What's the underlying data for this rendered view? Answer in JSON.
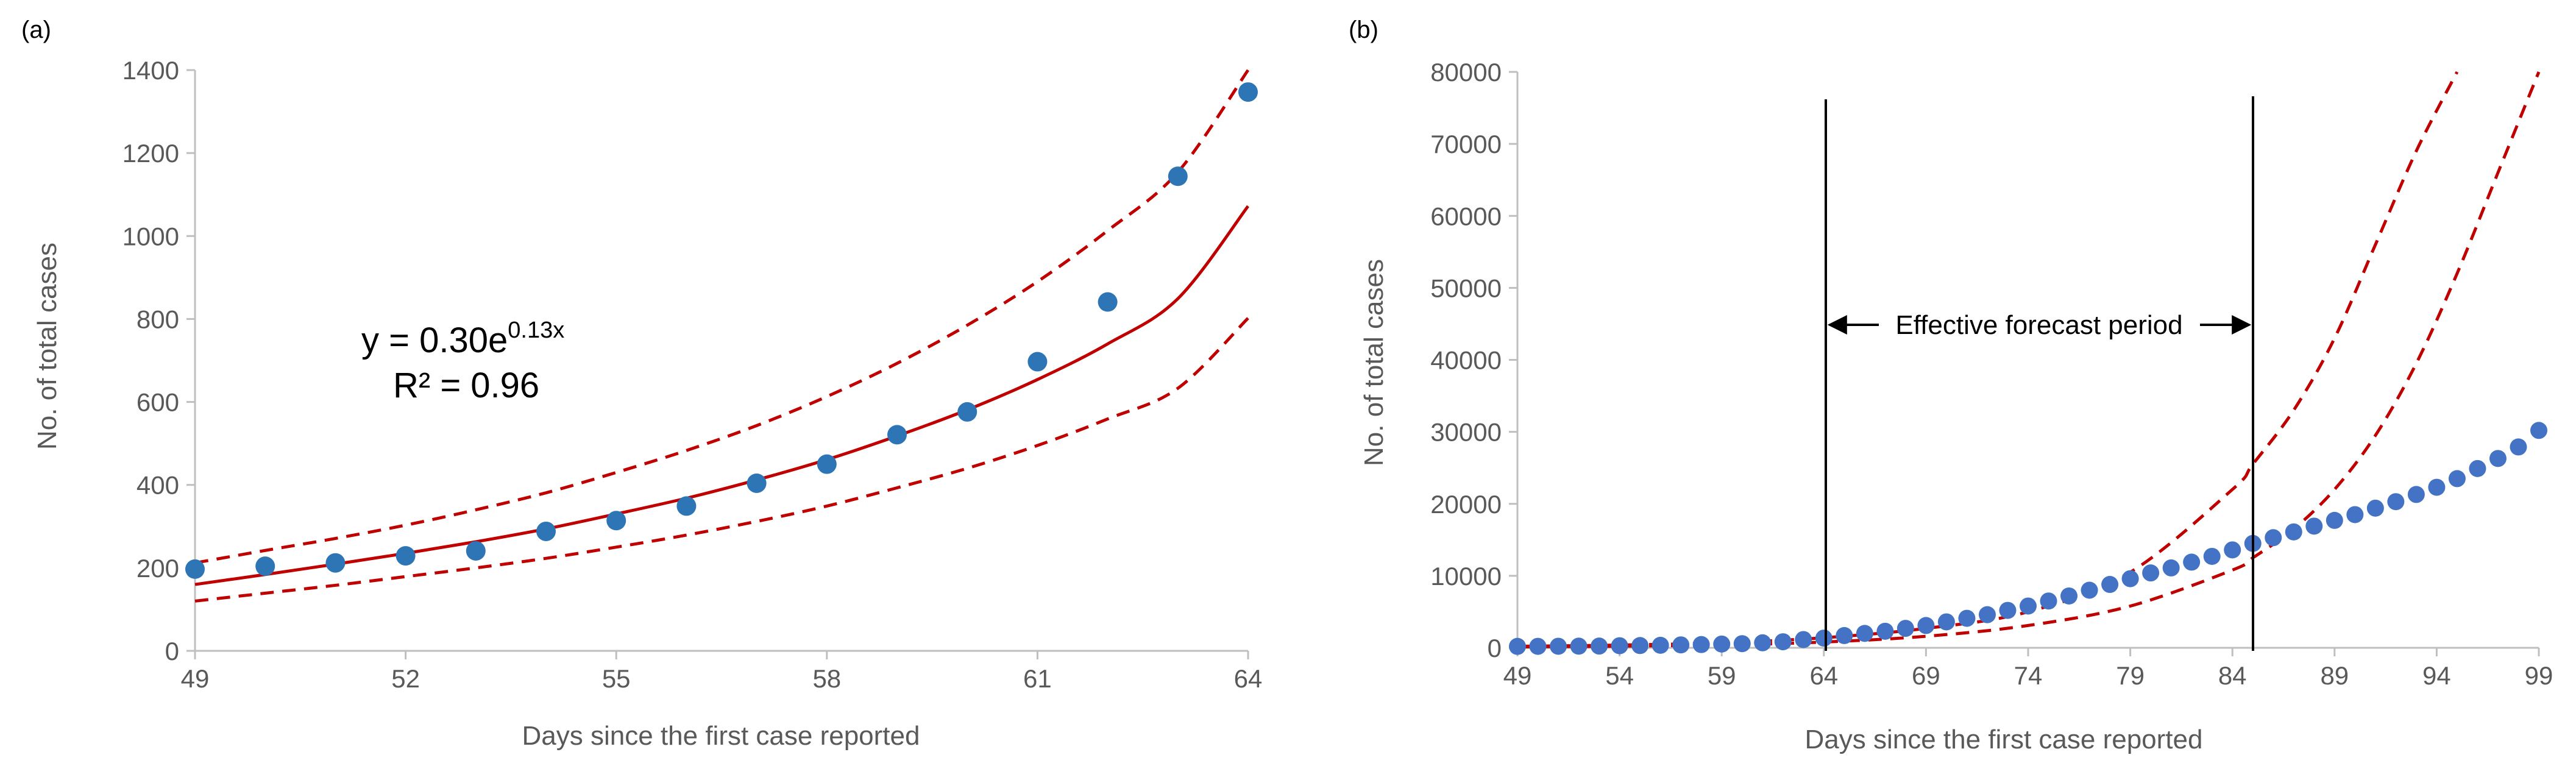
{
  "colors": {
    "fit_line": "#c00000",
    "bounds": "#c00000",
    "points_a": "#2e75b6",
    "points_b": "#4472c4",
    "axis": "#bfbfbf",
    "text": "#595959"
  },
  "chart_data": [
    {
      "panel_label": "(a)",
      "type": "scatter",
      "xlabel": "Days since the first case reported",
      "ylabel": "No. of  total cases",
      "xlim": [
        49,
        64
      ],
      "ylim": [
        0,
        1400
      ],
      "xticks": [
        49,
        52,
        55,
        58,
        61,
        64
      ],
      "yticks": [
        0,
        200,
        400,
        600,
        800,
        1000,
        1200,
        1400
      ],
      "series": [
        {
          "name": "Observed total cases",
          "kind": "points",
          "x": [
            49,
            50,
            51,
            52,
            53,
            54,
            55,
            56,
            57,
            58,
            59,
            60,
            61,
            62,
            63,
            64
          ],
          "y": [
            197,
            204,
            212,
            229,
            241,
            288,
            314,
            349,
            404,
            450,
            521,
            576,
            697,
            841,
            1144,
            1347
          ]
        },
        {
          "name": "Exponential fit",
          "kind": "line",
          "x": [
            49,
            50,
            51,
            52,
            53,
            54,
            55,
            56,
            57,
            58,
            59,
            60,
            61,
            62,
            63,
            64
          ],
          "y": [
            160,
            184,
            209,
            235,
            263,
            294,
            330,
            368,
            412,
            461,
            518,
            581,
            654,
            740,
            849,
            1072
          ]
        },
        {
          "name": "Upper bound",
          "kind": "dashed",
          "x": [
            49,
            50,
            51,
            52,
            53,
            54,
            55,
            56,
            57,
            58,
            59,
            60,
            61,
            62,
            63,
            64
          ],
          "y": [
            212,
            242,
            271,
            303,
            340,
            381,
            430,
            483,
            543,
            613,
            693,
            785,
            890,
            1013,
            1154,
            1400
          ]
        },
        {
          "name": "Lower bound",
          "kind": "dashed",
          "x": [
            49,
            50,
            51,
            52,
            53,
            54,
            55,
            56,
            57,
            58,
            59,
            60,
            61,
            62,
            63,
            64
          ],
          "y": [
            120,
            139,
            158,
            179,
            200,
            223,
            250,
            279,
            312,
            349,
            393,
            440,
            495,
            559,
            633,
            802
          ]
        }
      ],
      "annotations": {
        "equation_main": "y = 0.30e",
        "equation_exponent": "0.13x",
        "r_squared": "R² = 0.96"
      }
    },
    {
      "panel_label": "(b)",
      "type": "scatter",
      "xlabel": "Days since the first case reported",
      "ylabel": "No. of total cases",
      "xlim": [
        49,
        99
      ],
      "ylim": [
        0,
        80000
      ],
      "xticks": [
        49,
        54,
        59,
        64,
        69,
        74,
        79,
        84,
        89,
        94,
        99
      ],
      "yticks": [
        0,
        10000,
        20000,
        30000,
        40000,
        50000,
        60000,
        70000,
        80000
      ],
      "series": [
        {
          "name": "Observed total cases",
          "kind": "points",
          "x": [
            49,
            50,
            51,
            52,
            53,
            54,
            55,
            56,
            57,
            58,
            59,
            60,
            61,
            62,
            63,
            64,
            65,
            66,
            67,
            68,
            69,
            70,
            71,
            72,
            73,
            74,
            75,
            76,
            77,
            78,
            79,
            80,
            81,
            82,
            83,
            84,
            85,
            86,
            87,
            88,
            89,
            90,
            91,
            92,
            93,
            94,
            95,
            96,
            97,
            98,
            99
          ],
          "y": [
            197,
            204,
            212,
            229,
            241,
            288,
            314,
            349,
            404,
            450,
            521,
            576,
            697,
            841,
            1144,
            1347,
            1700,
            2000,
            2300,
            2700,
            3100,
            3600,
            4100,
            4600,
            5200,
            5800,
            6500,
            7200,
            8000,
            8800,
            9600,
            10400,
            11100,
            11900,
            12700,
            13600,
            14500,
            15300,
            16100,
            16900,
            17700,
            18500,
            19400,
            20300,
            21300,
            22300,
            23500,
            24900,
            26300,
            27900,
            30200
          ]
        },
        {
          "name": "Upper bound",
          "kind": "dashed",
          "x": [
            49,
            54,
            59,
            64,
            69,
            74,
            79,
            84,
            85,
            87,
            89,
            91,
            93,
            95
          ],
          "y": [
            212,
            380,
            700,
            1400,
            2700,
            5000,
            10500,
            22000,
            25500,
            33000,
            43000,
            56000,
            69000,
            80000
          ]
        },
        {
          "name": "Lower bound",
          "kind": "dashed",
          "x": [
            49,
            54,
            59,
            64,
            69,
            74,
            79,
            84,
            85,
            87,
            89,
            91,
            93,
            95,
            97,
            99
          ],
          "y": [
            120,
            220,
            400,
            800,
            1600,
            3100,
            5800,
            10800,
            12500,
            16500,
            22000,
            29500,
            39500,
            52000,
            66000,
            80000
          ]
        }
      ],
      "annotations": {
        "forecast_label": "Effective forecast period",
        "forecast_start_day": 64,
        "forecast_end_day": 85
      }
    }
  ]
}
